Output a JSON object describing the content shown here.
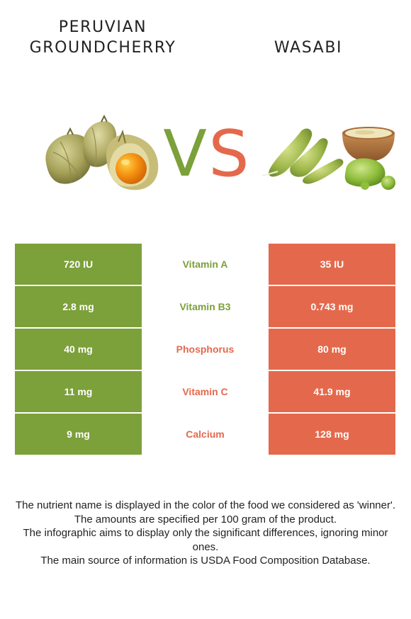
{
  "left_food": {
    "title_lines": [
      "PERUVIAN",
      "GROUNDCHERRY"
    ]
  },
  "right_food": {
    "title": "WASABI"
  },
  "vs": {
    "v": "V",
    "s": "S"
  },
  "colors": {
    "left": "#7ca03a",
    "right": "#e4694c"
  },
  "rows": [
    {
      "left": "720 IU",
      "nutrient": "Vitamin A",
      "right": "35 IU",
      "winner": "left"
    },
    {
      "left": "2.8 mg",
      "nutrient": "Vitamin B3",
      "right": "0.743 mg",
      "winner": "left"
    },
    {
      "left": "40 mg",
      "nutrient": "Phosphorus",
      "right": "80 mg",
      "winner": "right"
    },
    {
      "left": "11 mg",
      "nutrient": "Vitamin C",
      "right": "41.9 mg",
      "winner": "right"
    },
    {
      "left": "9 mg",
      "nutrient": "Calcium",
      "right": "128 mg",
      "winner": "right"
    }
  ],
  "notes": [
    "The nutrient name is displayed in the color of the food we considered as 'winner'.",
    "The amounts are specified per 100 gram of the product.",
    "The infographic aims to display only the significant differences, ignoring minor ones.",
    "The main source of information is USDA Food Composition Database."
  ]
}
